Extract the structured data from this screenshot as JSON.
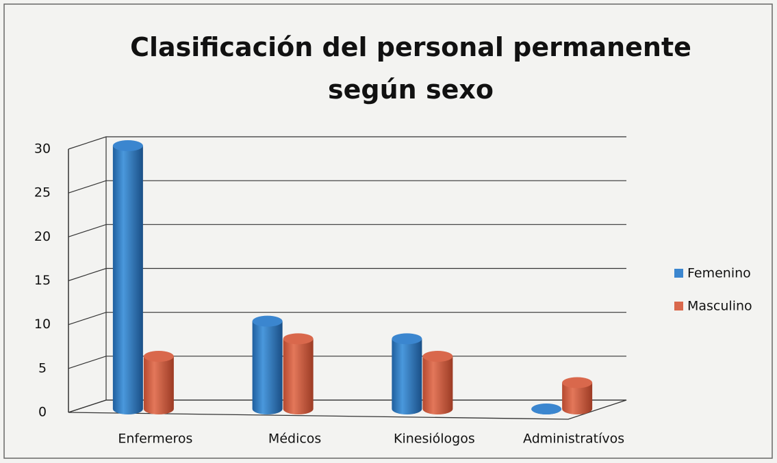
{
  "chart_data": {
    "type": "bar",
    "title": "Clasificación del personal permanente según sexo",
    "categories": [
      "Enfermeros",
      "Médicos",
      "Kinesiólogos",
      "Administratívos"
    ],
    "series": [
      {
        "name": "Femenino",
        "color": "#3b86cf",
        "values": [
          30,
          10,
          8,
          0
        ]
      },
      {
        "name": "Masculino",
        "color": "#d9684c",
        "values": [
          6,
          8,
          6,
          3
        ]
      }
    ],
    "ylim": [
      0,
      30
    ],
    "yticks": [
      0,
      5,
      10,
      15,
      20,
      25,
      30
    ],
    "grid": true,
    "legend": "right"
  }
}
